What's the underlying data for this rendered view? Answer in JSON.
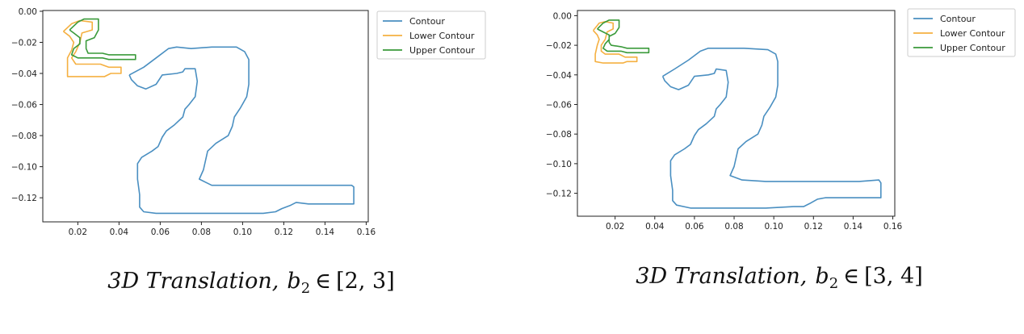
{
  "colors": {
    "contour": "#4a8fc1",
    "lower": "#f5b041",
    "upper": "#3a9a3a"
  },
  "chart_data": [
    {
      "type": "line",
      "caption": {
        "prefix": "3D Translation,",
        "var": "b",
        "sub": "2",
        "rel": "∈",
        "range": "[2, 3]"
      },
      "xlim": [
        0.003,
        0.161
      ],
      "ylim": [
        -0.1355,
        0.0005
      ],
      "xticks": [
        0.02,
        0.04,
        0.06,
        0.08,
        0.1,
        0.12,
        0.14,
        0.16
      ],
      "xtick_labels": [
        "0.02",
        "0.04",
        "0.06",
        "0.08",
        "0.10",
        "0.12",
        "0.14",
        "0.16"
      ],
      "yticks": [
        0.0,
        -0.02,
        -0.04,
        -0.06,
        -0.08,
        -0.1,
        -0.12
      ],
      "ytick_labels": [
        "0.00",
        "−0.02",
        "−0.04",
        "−0.06",
        "−0.08",
        "−0.10",
        "−0.12"
      ],
      "legend_position": "outside-upper-right",
      "series": [
        {
          "name": "Contour",
          "color_key": "contour",
          "points": [
            [
              0.045,
              -0.041
            ],
            [
              0.052,
              -0.036
            ],
            [
              0.058,
              -0.03
            ],
            [
              0.064,
              -0.024
            ],
            [
              0.068,
              -0.023
            ],
            [
              0.075,
              -0.024
            ],
            [
              0.085,
              -0.023
            ],
            [
              0.097,
              -0.023
            ],
            [
              0.101,
              -0.026
            ],
            [
              0.103,
              -0.031
            ],
            [
              0.103,
              -0.047
            ],
            [
              0.102,
              -0.055
            ],
            [
              0.099,
              -0.062
            ],
            [
              0.096,
              -0.068
            ],
            [
              0.095,
              -0.074
            ],
            [
              0.093,
              -0.08
            ],
            [
              0.087,
              -0.085
            ],
            [
              0.083,
              -0.09
            ],
            [
              0.082,
              -0.096
            ],
            [
              0.081,
              -0.102
            ],
            [
              0.079,
              -0.108
            ],
            [
              0.085,
              -0.112
            ],
            [
              0.096,
              -0.112
            ],
            [
              0.108,
              -0.112
            ],
            [
              0.12,
              -0.112
            ],
            [
              0.132,
              -0.112
            ],
            [
              0.143,
              -0.112
            ],
            [
              0.153,
              -0.112
            ],
            [
              0.154,
              -0.113
            ],
            [
              0.154,
              -0.124
            ],
            [
              0.143,
              -0.124
            ],
            [
              0.132,
              -0.124
            ],
            [
              0.126,
              -0.123
            ],
            [
              0.123,
              -0.125
            ],
            [
              0.119,
              -0.127
            ],
            [
              0.116,
              -0.129
            ],
            [
              0.11,
              -0.13
            ],
            [
              0.096,
              -0.13
            ],
            [
              0.082,
              -0.13
            ],
            [
              0.07,
              -0.13
            ],
            [
              0.058,
              -0.13
            ],
            [
              0.052,
              -0.129
            ],
            [
              0.05,
              -0.126
            ],
            [
              0.05,
              -0.118
            ],
            [
              0.049,
              -0.108
            ],
            [
              0.049,
              -0.098
            ],
            [
              0.051,
              -0.094
            ],
            [
              0.056,
              -0.09
            ],
            [
              0.059,
              -0.087
            ],
            [
              0.061,
              -0.081
            ],
            [
              0.063,
              -0.077
            ],
            [
              0.067,
              -0.073
            ],
            [
              0.071,
              -0.068
            ],
            [
              0.072,
              -0.063
            ],
            [
              0.074,
              -0.06
            ],
            [
              0.077,
              -0.055
            ],
            [
              0.078,
              -0.045
            ],
            [
              0.077,
              -0.037
            ],
            [
              0.072,
              -0.037
            ],
            [
              0.071,
              -0.039
            ],
            [
              0.068,
              -0.04
            ],
            [
              0.061,
              -0.041
            ],
            [
              0.058,
              -0.047
            ],
            [
              0.053,
              -0.05
            ],
            [
              0.049,
              -0.048
            ],
            [
              0.046,
              -0.044
            ],
            [
              0.045,
              -0.041
            ]
          ]
        },
        {
          "name": "Lower Contour",
          "color_key": "lower",
          "points": [
            [
              0.013,
              -0.013
            ],
            [
              0.017,
              -0.008
            ],
            [
              0.021,
              -0.006
            ],
            [
              0.027,
              -0.007
            ],
            [
              0.027,
              -0.012
            ],
            [
              0.022,
              -0.014
            ],
            [
              0.021,
              -0.02
            ],
            [
              0.019,
              -0.026
            ],
            [
              0.017,
              -0.03
            ],
            [
              0.019,
              -0.034
            ],
            [
              0.031,
              -0.034
            ],
            [
              0.035,
              -0.036
            ],
            [
              0.041,
              -0.036
            ],
            [
              0.041,
              -0.04
            ],
            [
              0.036,
              -0.04
            ],
            [
              0.033,
              -0.042
            ],
            [
              0.021,
              -0.042
            ],
            [
              0.015,
              -0.042
            ],
            [
              0.015,
              -0.036
            ],
            [
              0.015,
              -0.03
            ],
            [
              0.017,
              -0.025
            ],
            [
              0.018,
              -0.02
            ],
            [
              0.016,
              -0.016
            ],
            [
              0.013,
              -0.013
            ]
          ]
        },
        {
          "name": "Upper Contour",
          "color_key": "upper",
          "points": [
            [
              0.016,
              -0.012
            ],
            [
              0.02,
              -0.007
            ],
            [
              0.023,
              -0.005
            ],
            [
              0.03,
              -0.005
            ],
            [
              0.03,
              -0.012
            ],
            [
              0.028,
              -0.017
            ],
            [
              0.024,
              -0.019
            ],
            [
              0.024,
              -0.024
            ],
            [
              0.025,
              -0.027
            ],
            [
              0.032,
              -0.027
            ],
            [
              0.035,
              -0.028
            ],
            [
              0.048,
              -0.028
            ],
            [
              0.048,
              -0.031
            ],
            [
              0.035,
              -0.031
            ],
            [
              0.032,
              -0.03
            ],
            [
              0.02,
              -0.03
            ],
            [
              0.017,
              -0.028
            ],
            [
              0.018,
              -0.024
            ],
            [
              0.021,
              -0.021
            ],
            [
              0.021,
              -0.017
            ],
            [
              0.018,
              -0.014
            ],
            [
              0.016,
              -0.012
            ]
          ]
        }
      ]
    },
    {
      "type": "line",
      "caption": {
        "prefix": "3D Translation,",
        "var": "b",
        "sub": "2",
        "rel": "∈",
        "range": "[3, 4]"
      },
      "xlim": [
        0.001,
        0.161
      ],
      "ylim": [
        -0.1355,
        0.0035
      ],
      "xticks": [
        0.02,
        0.04,
        0.06,
        0.08,
        0.1,
        0.12,
        0.14,
        0.16
      ],
      "xtick_labels": [
        "0.02",
        "0.04",
        "0.06",
        "0.08",
        "0.10",
        "0.12",
        "0.14",
        "0.16"
      ],
      "yticks": [
        0.0,
        -0.02,
        -0.04,
        -0.06,
        -0.08,
        -0.1,
        -0.12
      ],
      "ytick_labels": [
        "0.00",
        "−0.02",
        "−0.04",
        "−0.06",
        "−0.08",
        "−0.10",
        "−0.12"
      ],
      "legend_position": "outside-upper-right",
      "series": [
        {
          "name": "Contour",
          "color_key": "contour",
          "points": [
            [
              0.044,
              -0.041
            ],
            [
              0.05,
              -0.036
            ],
            [
              0.057,
              -0.03
            ],
            [
              0.063,
              -0.024
            ],
            [
              0.067,
              -0.022
            ],
            [
              0.075,
              -0.022
            ],
            [
              0.085,
              -0.022
            ],
            [
              0.097,
              -0.023
            ],
            [
              0.101,
              -0.026
            ],
            [
              0.102,
              -0.031
            ],
            [
              0.102,
              -0.047
            ],
            [
              0.101,
              -0.055
            ],
            [
              0.098,
              -0.062
            ],
            [
              0.095,
              -0.068
            ],
            [
              0.094,
              -0.074
            ],
            [
              0.092,
              -0.08
            ],
            [
              0.086,
              -0.085
            ],
            [
              0.082,
              -0.09
            ],
            [
              0.081,
              -0.096
            ],
            [
              0.08,
              -0.102
            ],
            [
              0.078,
              -0.108
            ],
            [
              0.084,
              -0.111
            ],
            [
              0.096,
              -0.112
            ],
            [
              0.108,
              -0.112
            ],
            [
              0.12,
              -0.112
            ],
            [
              0.132,
              -0.112
            ],
            [
              0.143,
              -0.112
            ],
            [
              0.153,
              -0.111
            ],
            [
              0.154,
              -0.113
            ],
            [
              0.154,
              -0.123
            ],
            [
              0.143,
              -0.123
            ],
            [
              0.132,
              -0.123
            ],
            [
              0.126,
              -0.123
            ],
            [
              0.122,
              -0.124
            ],
            [
              0.118,
              -0.127
            ],
            [
              0.115,
              -0.129
            ],
            [
              0.11,
              -0.129
            ],
            [
              0.096,
              -0.13
            ],
            [
              0.082,
              -0.13
            ],
            [
              0.07,
              -0.13
            ],
            [
              0.058,
              -0.13
            ],
            [
              0.051,
              -0.128
            ],
            [
              0.049,
              -0.125
            ],
            [
              0.049,
              -0.118
            ],
            [
              0.048,
              -0.108
            ],
            [
              0.048,
              -0.098
            ],
            [
              0.05,
              -0.094
            ],
            [
              0.055,
              -0.09
            ],
            [
              0.058,
              -0.087
            ],
            [
              0.06,
              -0.081
            ],
            [
              0.062,
              -0.077
            ],
            [
              0.066,
              -0.073
            ],
            [
              0.07,
              -0.068
            ],
            [
              0.071,
              -0.063
            ],
            [
              0.073,
              -0.06
            ],
            [
              0.076,
              -0.055
            ],
            [
              0.077,
              -0.045
            ],
            [
              0.076,
              -0.037
            ],
            [
              0.071,
              -0.036
            ],
            [
              0.07,
              -0.039
            ],
            [
              0.067,
              -0.04
            ],
            [
              0.06,
              -0.041
            ],
            [
              0.057,
              -0.047
            ],
            [
              0.052,
              -0.05
            ],
            [
              0.048,
              -0.048
            ],
            [
              0.045,
              -0.044
            ],
            [
              0.044,
              -0.041
            ]
          ]
        },
        {
          "name": "Lower Contour",
          "color_key": "lower",
          "points": [
            [
              0.009,
              -0.01
            ],
            [
              0.012,
              -0.005
            ],
            [
              0.015,
              -0.004
            ],
            [
              0.019,
              -0.005
            ],
            [
              0.019,
              -0.009
            ],
            [
              0.016,
              -0.011
            ],
            [
              0.015,
              -0.016
            ],
            [
              0.013,
              -0.02
            ],
            [
              0.013,
              -0.024
            ],
            [
              0.015,
              -0.026
            ],
            [
              0.022,
              -0.026
            ],
            [
              0.025,
              -0.028
            ],
            [
              0.031,
              -0.028
            ],
            [
              0.031,
              -0.031
            ],
            [
              0.026,
              -0.031
            ],
            [
              0.024,
              -0.032
            ],
            [
              0.014,
              -0.032
            ],
            [
              0.01,
              -0.031
            ],
            [
              0.01,
              -0.026
            ],
            [
              0.011,
              -0.02
            ],
            [
              0.012,
              -0.016
            ],
            [
              0.011,
              -0.013
            ],
            [
              0.009,
              -0.01
            ]
          ]
        },
        {
          "name": "Upper Contour",
          "color_key": "upper",
          "points": [
            [
              0.011,
              -0.009
            ],
            [
              0.014,
              -0.005
            ],
            [
              0.017,
              -0.003
            ],
            [
              0.022,
              -0.003
            ],
            [
              0.022,
              -0.008
            ],
            [
              0.02,
              -0.012
            ],
            [
              0.017,
              -0.014
            ],
            [
              0.017,
              -0.018
            ],
            [
              0.018,
              -0.02
            ],
            [
              0.023,
              -0.021
            ],
            [
              0.026,
              -0.022
            ],
            [
              0.037,
              -0.022
            ],
            [
              0.037,
              -0.025
            ],
            [
              0.026,
              -0.025
            ],
            [
              0.023,
              -0.024
            ],
            [
              0.016,
              -0.024
            ],
            [
              0.014,
              -0.022
            ],
            [
              0.015,
              -0.019
            ],
            [
              0.017,
              -0.016
            ],
            [
              0.017,
              -0.013
            ],
            [
              0.014,
              -0.011
            ],
            [
              0.011,
              -0.009
            ]
          ]
        }
      ]
    }
  ]
}
